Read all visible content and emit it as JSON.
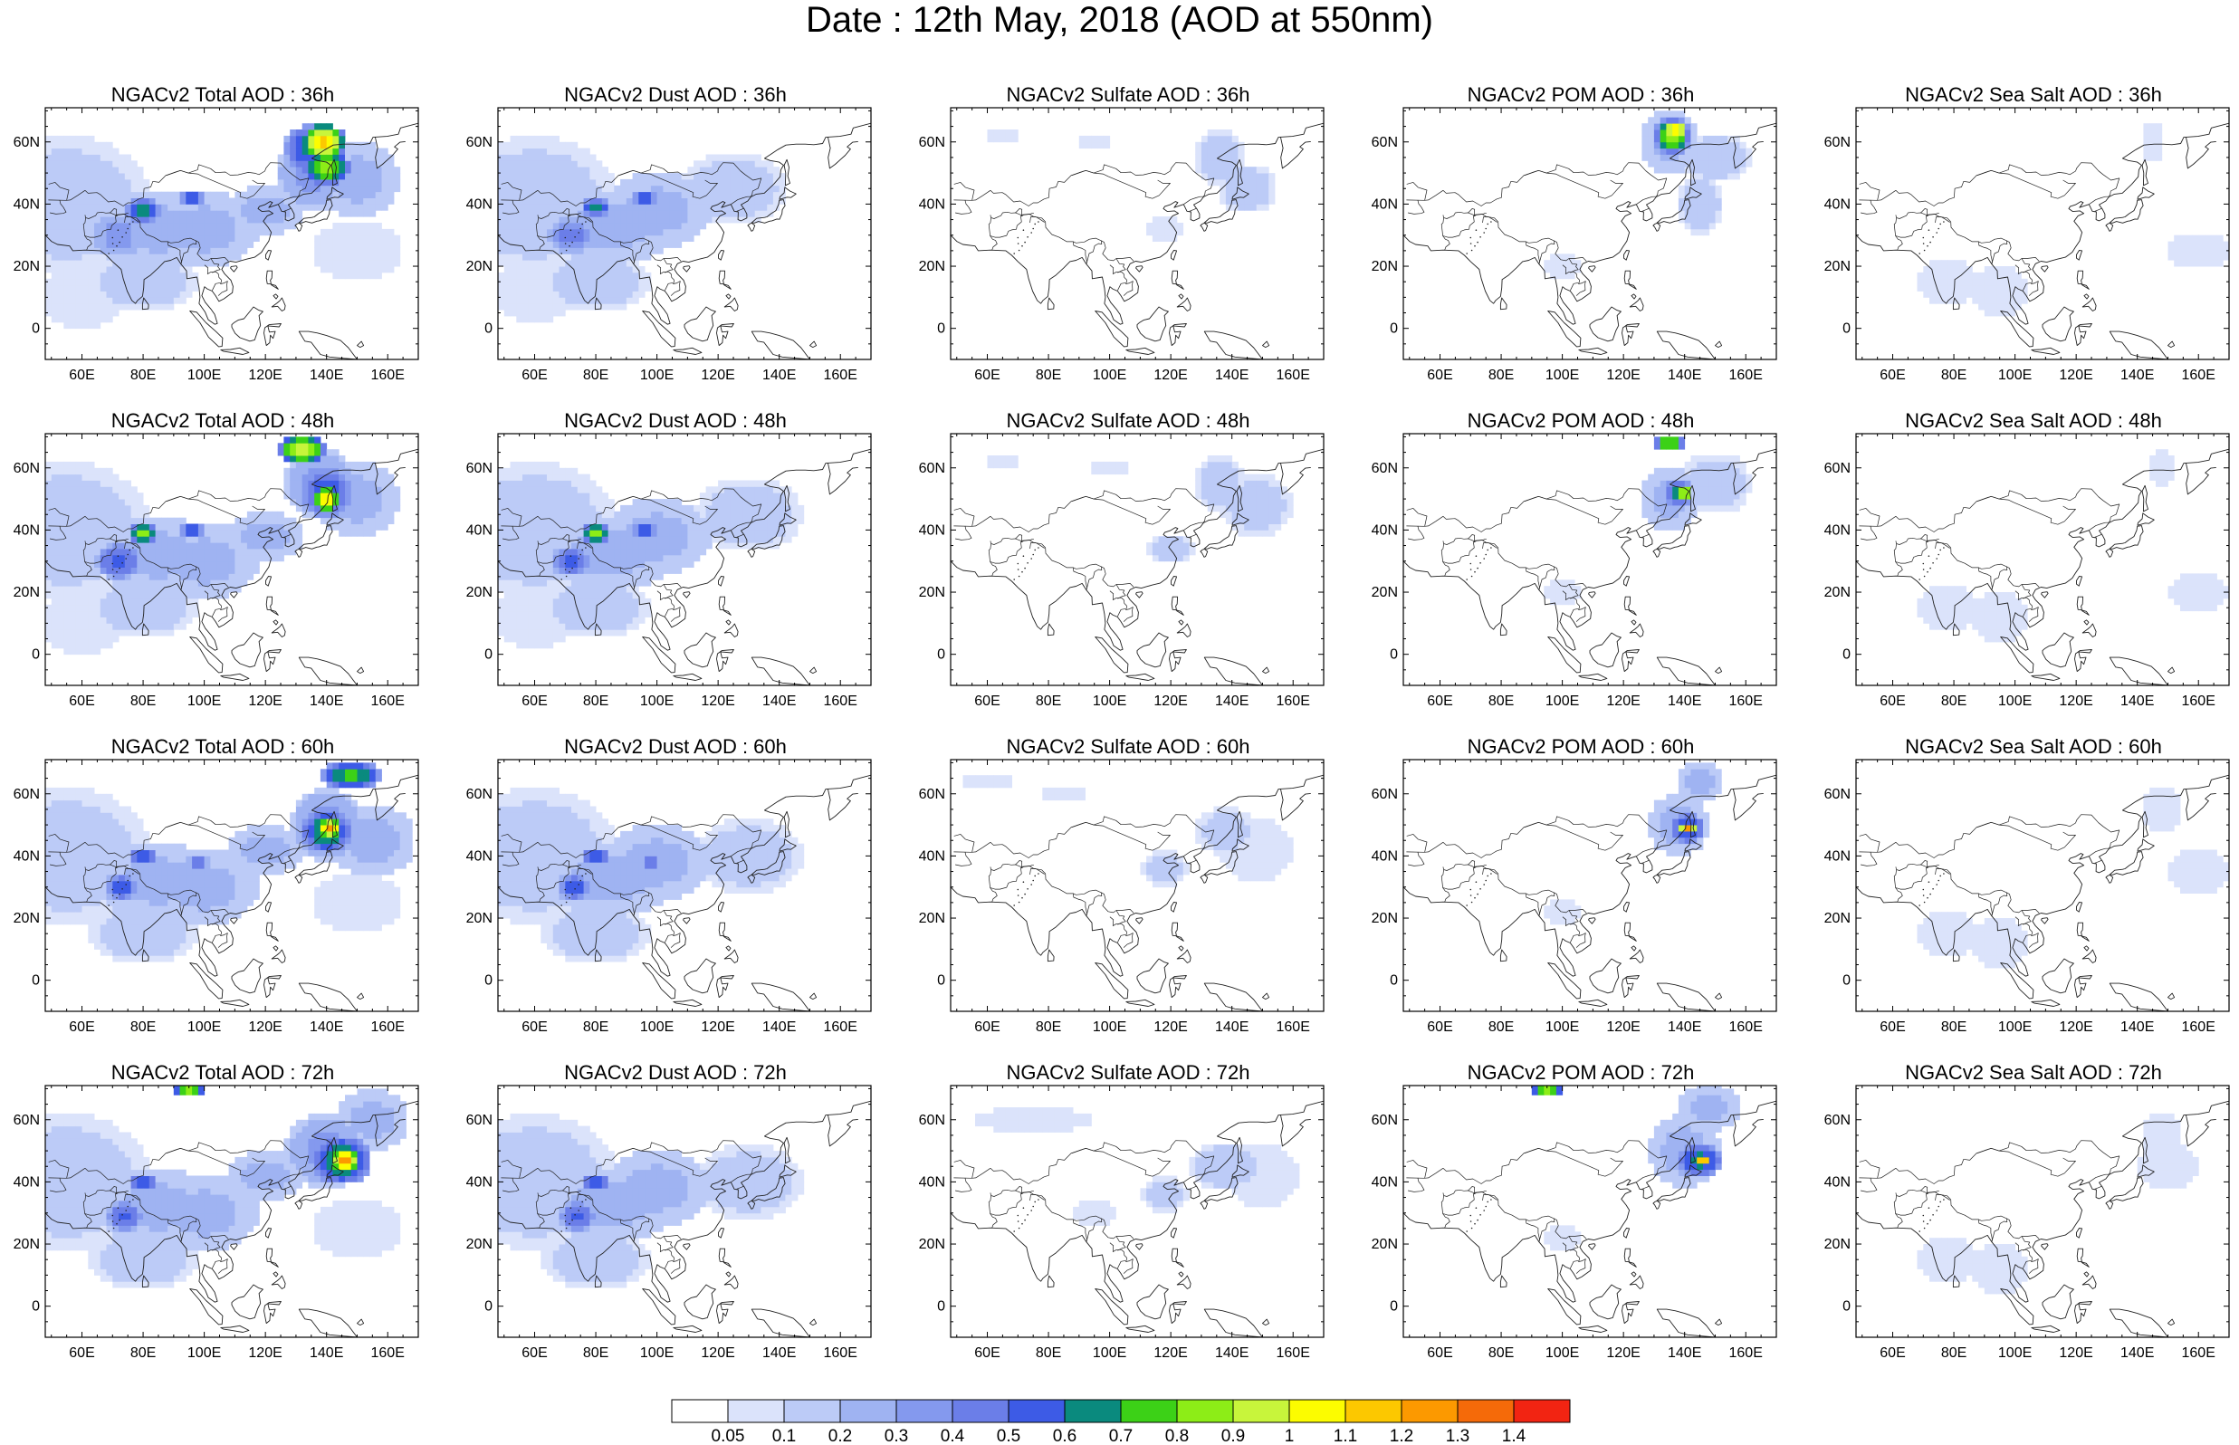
{
  "title": "Date : 12th May, 2018 (AOD at 550nm)",
  "axes": {
    "lon_ticks": [
      "60E",
      "80E",
      "100E",
      "120E",
      "140E",
      "160E"
    ],
    "lat_ticks": [
      "60N",
      "40N",
      "20N",
      "0"
    ],
    "lon_values": [
      60,
      80,
      100,
      120,
      140,
      160
    ],
    "lat_values": [
      60,
      40,
      20,
      0
    ],
    "lon_range": [
      48,
      170
    ],
    "lat_range": [
      -10,
      71
    ]
  },
  "panels": [
    {
      "title": "NGACv2 Total AOD : 36h",
      "species": "total",
      "hour": 36
    },
    {
      "title": "NGACv2 Dust AOD : 36h",
      "species": "dust",
      "hour": 36
    },
    {
      "title": "NGACv2 Sulfate AOD : 36h",
      "species": "sulfate",
      "hour": 36
    },
    {
      "title": "NGACv2 POM AOD : 36h",
      "species": "pom",
      "hour": 36
    },
    {
      "title": "NGACv2 Sea Salt AOD : 36h",
      "species": "seasalt",
      "hour": 36
    },
    {
      "title": "NGACv2 Total AOD : 48h",
      "species": "total",
      "hour": 48
    },
    {
      "title": "NGACv2 Dust AOD : 48h",
      "species": "dust",
      "hour": 48
    },
    {
      "title": "NGACv2 Sulfate AOD : 48h",
      "species": "sulfate",
      "hour": 48
    },
    {
      "title": "NGACv2 POM AOD : 48h",
      "species": "pom",
      "hour": 48
    },
    {
      "title": "NGACv2 Sea Salt AOD : 48h",
      "species": "seasalt",
      "hour": 48
    },
    {
      "title": "NGACv2 Total AOD : 60h",
      "species": "total",
      "hour": 60
    },
    {
      "title": "NGACv2 Dust AOD : 60h",
      "species": "dust",
      "hour": 60
    },
    {
      "title": "NGACv2 Sulfate AOD : 60h",
      "species": "sulfate",
      "hour": 60
    },
    {
      "title": "NGACv2 POM AOD : 60h",
      "species": "pom",
      "hour": 60
    },
    {
      "title": "NGACv2 Sea Salt AOD : 60h",
      "species": "seasalt",
      "hour": 60
    },
    {
      "title": "NGACv2 Total AOD : 72h",
      "species": "total",
      "hour": 72
    },
    {
      "title": "NGACv2 Dust AOD : 72h",
      "species": "dust",
      "hour": 72
    },
    {
      "title": "NGACv2 Sulfate AOD : 72h",
      "species": "sulfate",
      "hour": 72
    },
    {
      "title": "NGACv2 POM AOD : 72h",
      "species": "pom",
      "hour": 72
    },
    {
      "title": "NGACv2 Sea Salt  AOD : 72h",
      "species": "seasalt",
      "hour": 72
    }
  ],
  "colorbar": {
    "labels": [
      "0.05",
      "0.1",
      "0.2",
      "0.3",
      "0.4",
      "0.5",
      "0.6",
      "0.7",
      "0.8",
      "0.9",
      "1",
      "1.1",
      "1.2",
      "1.3",
      "1.4"
    ],
    "colors": [
      "#ffffff",
      "#dbe3fb",
      "#bccbf7",
      "#9fb3f2",
      "#8499ee",
      "#6b7ee8",
      "#3d5be6",
      "#0a8a7e",
      "#3cd117",
      "#8ded17",
      "#c8f53b",
      "#fcfc00",
      "#fcc800",
      "#fc9900",
      "#f56a09",
      "#f22412"
    ]
  }
}
